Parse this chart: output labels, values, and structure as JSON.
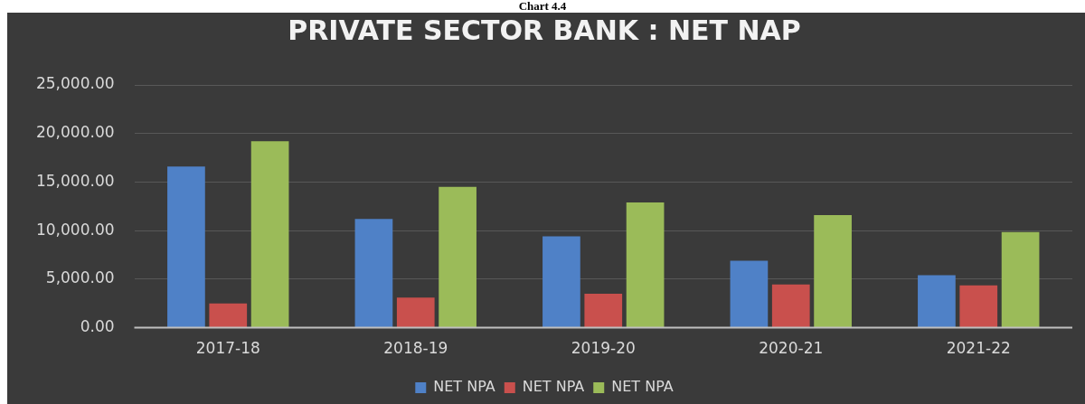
{
  "chart_data": {
    "type": "bar",
    "title": "PRIVATE SECTOR BANK : NET NAP",
    "annotations": [
      "Chart 4.4"
    ],
    "categories": [
      "2017-18",
      "2018-19",
      "2019-20",
      "2020-21",
      "2021-22"
    ],
    "series": [
      {
        "name": "NET NPA",
        "color": "#4f81c7",
        "values": [
          16600,
          11200,
          9400,
          6900,
          5400
        ]
      },
      {
        "name": "NET NPA",
        "color": "#c9504d",
        "values": [
          2500,
          3100,
          3500,
          4450,
          4350
        ]
      },
      {
        "name": "NET NPA",
        "color": "#9bbb59",
        "values": [
          19200,
          14500,
          12900,
          11600,
          9850
        ]
      }
    ],
    "ylim": [
      0,
      25000
    ],
    "yticks": [
      {
        "value": 0,
        "label": "0.00"
      },
      {
        "value": 5000,
        "label": "5,000.00"
      },
      {
        "value": 10000,
        "label": "10,000.00"
      },
      {
        "value": 15000,
        "label": "15,000.00"
      },
      {
        "value": 20000,
        "label": "20,000.00"
      },
      {
        "value": 25000,
        "label": "25,000.00"
      }
    ],
    "grid": "y",
    "legend": "bottom"
  }
}
